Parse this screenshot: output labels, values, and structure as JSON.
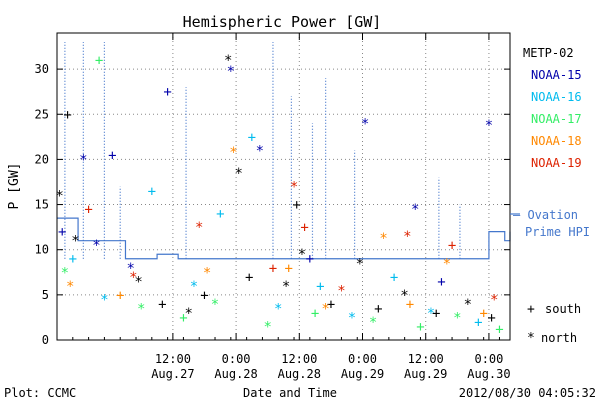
{
  "chart_data": {
    "type": "scatter",
    "title": "Hemispheric Power [GW]",
    "ylabel": "P [GW]",
    "xlabel": "Date and Time",
    "ylim": [
      0,
      34
    ],
    "xlim": [
      "2012-08-26 14:00",
      "2012-08-30 04:00"
    ],
    "grid": true,
    "y_ticks": [
      0,
      5,
      10,
      15,
      20,
      25,
      30
    ],
    "x_ticks": [
      {
        "x": "2012-08-27 12:00",
        "line1": "12:00",
        "line2": "Aug.27"
      },
      {
        "x": "2012-08-28 00:00",
        "line1": "0:00",
        "line2": "Aug.28"
      },
      {
        "x": "2012-08-28 12:00",
        "line1": "12:00",
        "line2": "Aug.28"
      },
      {
        "x": "2012-08-29 00:00",
        "line1": "0:00",
        "line2": "Aug.29"
      },
      {
        "x": "2012-08-29 12:00",
        "line1": "12:00",
        "line2": "Aug.29"
      },
      {
        "x": "2012-08-30 00:00",
        "line1": "0:00",
        "line2": "Aug.30"
      }
    ],
    "legend_position": "right",
    "series": [
      {
        "name": "METP-02",
        "color": "#000000",
        "points": [
          {
            "x": "2012-08-26 14:30",
            "y": 16.0,
            "marker": "north"
          },
          {
            "x": "2012-08-26 16:00",
            "y": 25.0,
            "marker": "south"
          },
          {
            "x": "2012-08-26 17:30",
            "y": 11.0,
            "marker": "north"
          },
          {
            "x": "2012-08-27 05:30",
            "y": 6.5,
            "marker": "north"
          },
          {
            "x": "2012-08-27 10:00",
            "y": 4.0,
            "marker": "south"
          },
          {
            "x": "2012-08-27 15:00",
            "y": 3.0,
            "marker": "north"
          },
          {
            "x": "2012-08-27 18:00",
            "y": 5.0,
            "marker": "south"
          },
          {
            "x": "2012-08-27 22:30",
            "y": 31.0,
            "marker": "north"
          },
          {
            "x": "2012-08-28 00:30",
            "y": 18.5,
            "marker": "north"
          },
          {
            "x": "2012-08-28 02:30",
            "y": 7.0,
            "marker": "south"
          },
          {
            "x": "2012-08-28 09:30",
            "y": 6.0,
            "marker": "north"
          },
          {
            "x": "2012-08-28 11:30",
            "y": 15.0,
            "marker": "south"
          },
          {
            "x": "2012-08-28 12:30",
            "y": 9.5,
            "marker": "north"
          },
          {
            "x": "2012-08-28 18:00",
            "y": 4.0,
            "marker": "south"
          },
          {
            "x": "2012-08-28 23:30",
            "y": 8.5,
            "marker": "north"
          },
          {
            "x": "2012-08-29 03:00",
            "y": 3.5,
            "marker": "south"
          },
          {
            "x": "2012-08-29 08:00",
            "y": 5.0,
            "marker": "north"
          },
          {
            "x": "2012-08-29 14:00",
            "y": 3.0,
            "marker": "south"
          },
          {
            "x": "2012-08-29 20:00",
            "y": 4.0,
            "marker": "north"
          },
          {
            "x": "2012-08-30 00:30",
            "y": 2.5,
            "marker": "south"
          }
        ]
      },
      {
        "name": "NOAA-15",
        "color": "#0000aa",
        "points": [
          {
            "x": "2012-08-26 15:00",
            "y": 12.0,
            "marker": "south"
          },
          {
            "x": "2012-08-26 19:00",
            "y": 20.0,
            "marker": "north"
          },
          {
            "x": "2012-08-26 21:30",
            "y": 10.5,
            "marker": "north"
          },
          {
            "x": "2012-08-27 00:30",
            "y": 20.5,
            "marker": "south"
          },
          {
            "x": "2012-08-27 04:00",
            "y": 8.0,
            "marker": "north"
          },
          {
            "x": "2012-08-27 11:00",
            "y": 27.5,
            "marker": "south"
          },
          {
            "x": "2012-08-27 23:00",
            "y": 29.8,
            "marker": "north"
          },
          {
            "x": "2012-08-28 04:30",
            "y": 21.0,
            "marker": "north"
          },
          {
            "x": "2012-08-28 14:00",
            "y": 9.0,
            "marker": "south"
          },
          {
            "x": "2012-08-29 00:30",
            "y": 24.0,
            "marker": "north"
          },
          {
            "x": "2012-08-29 10:00",
            "y": 14.5,
            "marker": "north"
          },
          {
            "x": "2012-08-29 15:00",
            "y": 6.5,
            "marker": "south"
          },
          {
            "x": "2012-08-30 00:00",
            "y": 23.8,
            "marker": "north"
          }
        ]
      },
      {
        "name": "NOAA-16",
        "color": "#00bbee",
        "points": [
          {
            "x": "2012-08-26 17:00",
            "y": 9.0,
            "marker": "south"
          },
          {
            "x": "2012-08-26 23:00",
            "y": 4.5,
            "marker": "north"
          },
          {
            "x": "2012-08-27 08:00",
            "y": 16.5,
            "marker": "south"
          },
          {
            "x": "2012-08-27 16:00",
            "y": 6.0,
            "marker": "north"
          },
          {
            "x": "2012-08-27 21:00",
            "y": 14.0,
            "marker": "south"
          },
          {
            "x": "2012-08-28 03:00",
            "y": 22.5,
            "marker": "south"
          },
          {
            "x": "2012-08-28 08:00",
            "y": 3.5,
            "marker": "north"
          },
          {
            "x": "2012-08-28 16:00",
            "y": 6.0,
            "marker": "south"
          },
          {
            "x": "2012-08-28 22:00",
            "y": 2.5,
            "marker": "north"
          },
          {
            "x": "2012-08-29 06:00",
            "y": 7.0,
            "marker": "south"
          },
          {
            "x": "2012-08-29 13:00",
            "y": 3.0,
            "marker": "north"
          },
          {
            "x": "2012-08-29 22:00",
            "y": 2.0,
            "marker": "south"
          }
        ]
      },
      {
        "name": "NOAA-17",
        "color": "#33ee66",
        "points": [
          {
            "x": "2012-08-26 15:30",
            "y": 7.5,
            "marker": "north"
          },
          {
            "x": "2012-08-26 22:00",
            "y": 31.0,
            "marker": "south"
          },
          {
            "x": "2012-08-27 06:00",
            "y": 3.5,
            "marker": "north"
          },
          {
            "x": "2012-08-27 14:00",
            "y": 2.5,
            "marker": "south"
          },
          {
            "x": "2012-08-27 20:00",
            "y": 4.0,
            "marker": "north"
          },
          {
            "x": "2012-08-28 06:00",
            "y": 1.5,
            "marker": "north"
          },
          {
            "x": "2012-08-28 15:00",
            "y": 3.0,
            "marker": "south"
          },
          {
            "x": "2012-08-29 02:00",
            "y": 2.0,
            "marker": "north"
          },
          {
            "x": "2012-08-29 11:00",
            "y": 1.5,
            "marker": "south"
          },
          {
            "x": "2012-08-29 18:00",
            "y": 2.5,
            "marker": "north"
          },
          {
            "x": "2012-08-30 02:00",
            "y": 1.2,
            "marker": "south"
          }
        ]
      },
      {
        "name": "NOAA-18",
        "color": "#ff8800",
        "points": [
          {
            "x": "2012-08-26 16:30",
            "y": 6.0,
            "marker": "north"
          },
          {
            "x": "2012-08-27 02:00",
            "y": 5.0,
            "marker": "south"
          },
          {
            "x": "2012-08-27 18:30",
            "y": 7.5,
            "marker": "north"
          },
          {
            "x": "2012-08-27 23:30",
            "y": 20.8,
            "marker": "north"
          },
          {
            "x": "2012-08-28 10:00",
            "y": 8.0,
            "marker": "south"
          },
          {
            "x": "2012-08-28 17:00",
            "y": 3.5,
            "marker": "north"
          },
          {
            "x": "2012-08-29 04:00",
            "y": 11.3,
            "marker": "north"
          },
          {
            "x": "2012-08-29 09:00",
            "y": 4.0,
            "marker": "south"
          },
          {
            "x": "2012-08-29 16:00",
            "y": 8.5,
            "marker": "north"
          },
          {
            "x": "2012-08-29 23:00",
            "y": 3.0,
            "marker": "south"
          }
        ]
      },
      {
        "name": "NOAA-19",
        "color": "#dd2200",
        "points": [
          {
            "x": "2012-08-26 20:00",
            "y": 14.5,
            "marker": "south"
          },
          {
            "x": "2012-08-27 04:30",
            "y": 7.0,
            "marker": "north"
          },
          {
            "x": "2012-08-27 17:00",
            "y": 12.5,
            "marker": "north"
          },
          {
            "x": "2012-08-28 07:00",
            "y": 8.0,
            "marker": "south"
          },
          {
            "x": "2012-08-28 11:00",
            "y": 17.0,
            "marker": "north"
          },
          {
            "x": "2012-08-28 13:00",
            "y": 12.5,
            "marker": "south"
          },
          {
            "x": "2012-08-28 20:00",
            "y": 5.5,
            "marker": "north"
          },
          {
            "x": "2012-08-29 08:30",
            "y": 11.5,
            "marker": "north"
          },
          {
            "x": "2012-08-29 17:00",
            "y": 10.5,
            "marker": "south"
          },
          {
            "x": "2012-08-30 01:00",
            "y": 4.5,
            "marker": "north"
          }
        ]
      }
    ],
    "ovation_prime": {
      "name": "— Ovation Prime HPI",
      "name_line1": "— Ovation",
      "name_line2": "Prime HPI",
      "color": "#4477cc",
      "baseline": [
        {
          "x": "2012-08-26 14:00",
          "y": 13.5
        },
        {
          "x": "2012-08-26 18:00",
          "y": 11.0
        },
        {
          "x": "2012-08-27 03:00",
          "y": 9.0
        },
        {
          "x": "2012-08-27 09:00",
          "y": 9.5
        },
        {
          "x": "2012-08-27 13:00",
          "y": 9.0
        },
        {
          "x": "2012-08-28 01:00",
          "y": 9.0
        },
        {
          "x": "2012-08-29 23:00",
          "y": 9.0
        },
        {
          "x": "2012-08-30 00:00",
          "y": 12.0
        },
        {
          "x": "2012-08-30 03:00",
          "y": 11.0
        },
        {
          "x": "2012-08-30 04:00",
          "y": 12.0
        }
      ],
      "spikes": [
        {
          "x": "2012-08-26 15:30",
          "y": 33
        },
        {
          "x": "2012-08-26 19:00",
          "y": 33
        },
        {
          "x": "2012-08-26 23:00",
          "y": 33
        },
        {
          "x": "2012-08-27 02:00",
          "y": 17
        },
        {
          "x": "2012-08-27 14:30",
          "y": 28
        },
        {
          "x": "2012-08-28 07:00",
          "y": 33
        },
        {
          "x": "2012-08-28 10:30",
          "y": 27
        },
        {
          "x": "2012-08-28 14:30",
          "y": 24
        },
        {
          "x": "2012-08-28 17:00",
          "y": 29
        },
        {
          "x": "2012-08-28 22:30",
          "y": 21
        },
        {
          "x": "2012-08-29 14:30",
          "y": 18
        },
        {
          "x": "2012-08-29 18:30",
          "y": 15
        }
      ]
    }
  },
  "legend": {
    "metp02": "METP-02",
    "noaa15": "NOAA-15",
    "noaa16": "NOAA-16",
    "noaa17": "NOAA-17",
    "noaa18": "NOAA-18",
    "noaa19": "NOAA-19",
    "south_label": "south",
    "north_label": "north"
  },
  "footer": {
    "left": "Plot: CCMC",
    "timestamp": "2012/08/30 04:05:32"
  }
}
